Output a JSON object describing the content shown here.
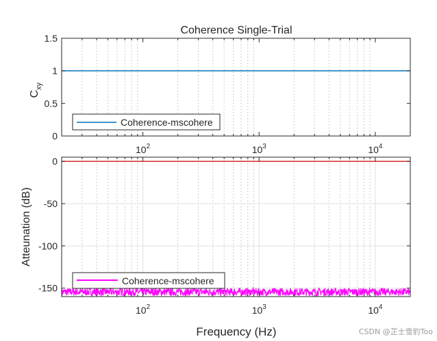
{
  "figure": {
    "xlabel": "Frequency (Hz)",
    "watermark": "CSDN @芷士雪豹Too"
  },
  "chart_data": [
    {
      "type": "line",
      "title": "Coherence Single-Trial",
      "xlabel": "",
      "ylabel_base": "C",
      "ylabel_sub": "xy",
      "xscale": "log",
      "xlim": [
        20,
        20000
      ],
      "ylim": [
        0,
        1.5
      ],
      "yticks": [
        0,
        0.5,
        1,
        1.5
      ],
      "yticklabels": [
        "0",
        "0.5",
        "1",
        "1.5"
      ],
      "xticks": [
        100,
        1000,
        10000
      ],
      "xtick_base": "10",
      "xtick_exponents": [
        "2",
        "3",
        "4"
      ],
      "grid": "x-minor-dotted",
      "legend_position": "bottom-left",
      "series": [
        {
          "name": "Coherence-mscohere",
          "color": "#0072BD",
          "x": [
            20,
            20000
          ],
          "y": [
            1,
            1
          ]
        }
      ]
    },
    {
      "type": "line",
      "title": "",
      "xlabel": "Frequency (Hz)",
      "ylabel": "Atteunation (dB)",
      "xscale": "log",
      "xlim": [
        20,
        20000
      ],
      "ylim": [
        -160,
        5
      ],
      "yticks": [
        0,
        -50,
        -100,
        -150
      ],
      "yticklabels": [
        "0",
        "-50",
        "-100",
        "-150"
      ],
      "xticks": [
        100,
        1000,
        10000
      ],
      "xtick_base": "10",
      "xtick_exponents": [
        "2",
        "3",
        "4"
      ],
      "grid": "on",
      "legend_position": "bottom-left",
      "series": [
        {
          "name": "Coherence-mscohere",
          "color": "#FF00FF",
          "x": [
            20,
            20000
          ],
          "y": [
            -155,
            -155
          ],
          "noisy": true,
          "range": [
            -159,
            -150
          ]
        },
        {
          "name": "",
          "color": "#D62728",
          "x": [
            20,
            20000
          ],
          "y": [
            0,
            0
          ]
        }
      ]
    }
  ]
}
